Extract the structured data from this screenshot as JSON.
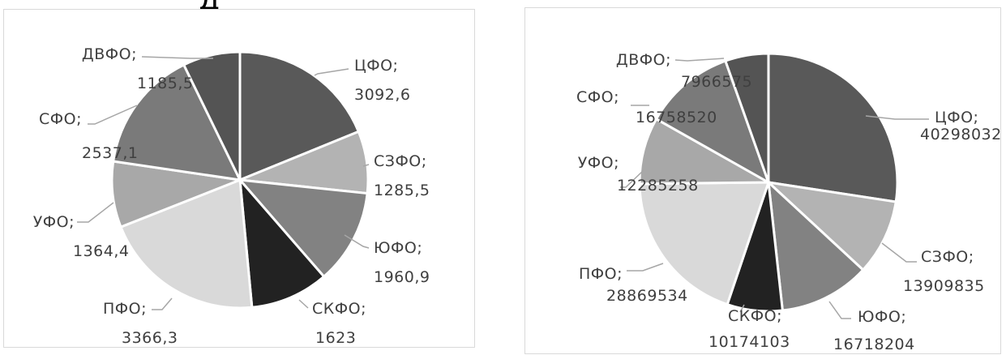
{
  "header_fragment": "д",
  "chart_data": [
    {
      "type": "pie",
      "start": "top",
      "direction": "clockwise",
      "slices": [
        {
          "label": "ЦФО",
          "value": 3092.6,
          "label_text": "3092,6",
          "color": "#595959"
        },
        {
          "label": "СЗФО",
          "value": 1285.5,
          "label_text": "1285,5",
          "color": "#b3b3b3"
        },
        {
          "label": "ЮФО",
          "value": 1960.9,
          "label_text": "1960,9",
          "color": "#828282"
        },
        {
          "label": "СКФО",
          "value": 1623,
          "label_text": "1623",
          "color": "#222222"
        },
        {
          "label": "ПФО",
          "value": 3366.3,
          "label_text": "3366,3",
          "color": "#d9d9d9"
        },
        {
          "label": "УФО",
          "value": 1364.4,
          "label_text": "1364,4",
          "color": "#a8a8a8"
        },
        {
          "label": "СФО",
          "value": 2537.1,
          "label_text": "2537,1",
          "color": "#7a7a7a"
        },
        {
          "label": "ДВФО",
          "value": 1185.5,
          "label_text": "1185,5",
          "color": "#545454"
        }
      ]
    },
    {
      "type": "pie",
      "start": "top",
      "direction": "clockwise",
      "slices": [
        {
          "label": "ЦФО",
          "value": 40298032,
          "label_text": "40298032",
          "color": "#595959"
        },
        {
          "label": "СЗФО",
          "value": 13909835,
          "label_text": "13909835",
          "color": "#b3b3b3"
        },
        {
          "label": "ЮФО",
          "value": 16718204,
          "label_text": "16718204",
          "color": "#828282"
        },
        {
          "label": "СКФО",
          "value": 10174103,
          "label_text": "10174103",
          "color": "#222222"
        },
        {
          "label": "ПФО",
          "value": 28869534,
          "label_text": "28869534",
          "color": "#d9d9d9"
        },
        {
          "label": "УФО",
          "value": 12285258,
          "label_text": "12285258",
          "color": "#a8a8a8"
        },
        {
          "label": "СФО",
          "value": 16758520,
          "label_text": "16758520",
          "color": "#7a7a7a"
        },
        {
          "label": "ДВФО",
          "value": 7966575,
          "label_text": "7966575",
          "color": "#545454"
        }
      ]
    }
  ]
}
